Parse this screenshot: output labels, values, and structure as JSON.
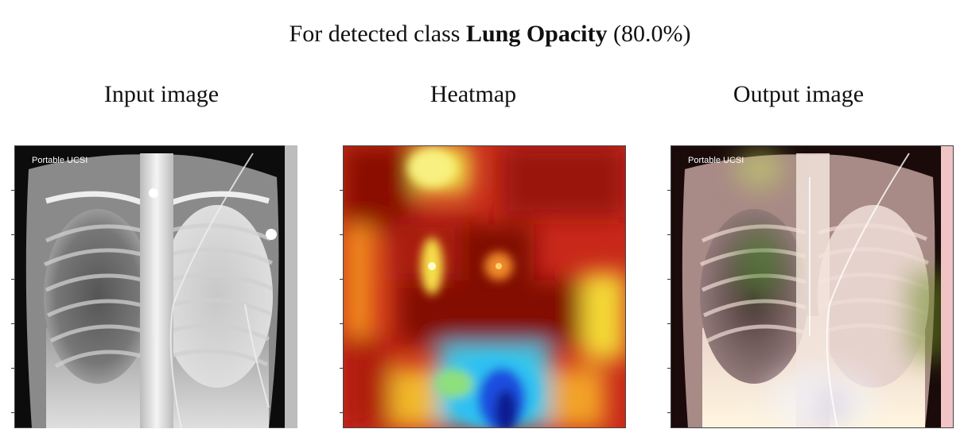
{
  "header": {
    "title_prefix": "For detected class",
    "class_name": "Lung Opacity",
    "confidence": "(80.0%)"
  },
  "panels": [
    {
      "id": "input",
      "title": "Input image",
      "overlay_text": "Portable UCSI"
    },
    {
      "id": "heatmap",
      "title": "Heatmap"
    },
    {
      "id": "output",
      "title": "Output image",
      "overlay_text": "Portable UCSI"
    }
  ],
  "heatmap_colormap": "jet"
}
